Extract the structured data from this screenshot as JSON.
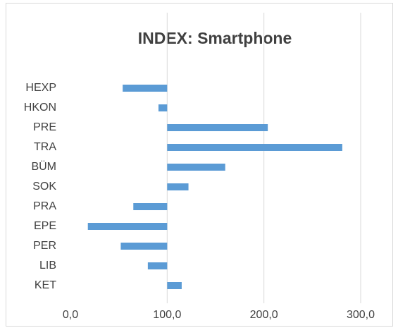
{
  "chart_data": {
    "type": "bar",
    "orientation": "horizontal",
    "title": "INDEX: Smartphone",
    "categories": [
      "HEXP",
      "HKON",
      "PRE",
      "TRA",
      "BÜM",
      "SOK",
      "PRA",
      "EPE",
      "PER",
      "LIB",
      "KET"
    ],
    "values": [
      54,
      91,
      204,
      281,
      160,
      122,
      65,
      18,
      52,
      80,
      115
    ],
    "base": 100,
    "color": "#5b9bd5",
    "xlim": [
      0,
      300
    ],
    "xticks": [
      {
        "value": 0,
        "label": "0,0"
      },
      {
        "value": 100,
        "label": "100,0"
      },
      {
        "value": 200,
        "label": "200,0"
      },
      {
        "value": 300,
        "label": "300,0"
      }
    ],
    "grid": true
  }
}
